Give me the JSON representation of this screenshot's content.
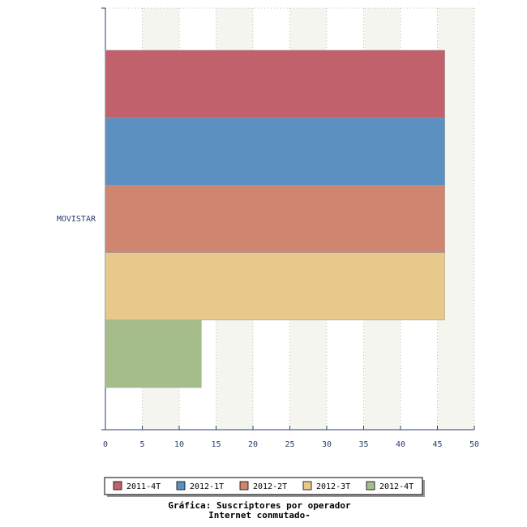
{
  "chart_data": {
    "type": "hbar",
    "title": "Gráfica: Suscriptores por operador",
    "subtitle": "Internet conmutado-",
    "categories": [
      "MOVISTAR"
    ],
    "series": [
      {
        "name": "2011-4T",
        "color": "#c0616b",
        "values": [
          46
        ]
      },
      {
        "name": "2012-1T",
        "color": "#5b90c0",
        "values": [
          46
        ]
      },
      {
        "name": "2012-2T",
        "color": "#cf8670",
        "values": [
          46
        ]
      },
      {
        "name": "2012-3T",
        "color": "#e9c98b",
        "values": [
          46
        ]
      },
      {
        "name": "2012-4T",
        "color": "#a5bd8b",
        "values": [
          13
        ]
      }
    ],
    "xlim": [
      0,
      50
    ],
    "xticks": [
      0,
      5,
      10,
      15,
      20,
      25,
      30,
      35,
      40,
      45,
      50
    ],
    "grid": true
  }
}
